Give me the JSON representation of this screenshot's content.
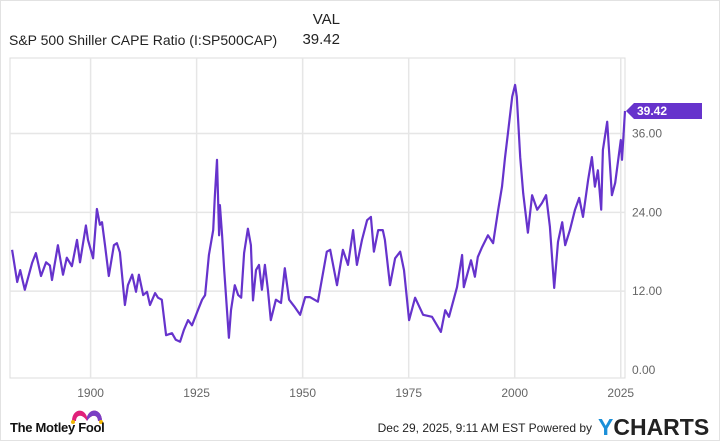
{
  "header": {
    "column_label": "VAL",
    "series_name": "S&P 500 Shiller CAPE Ratio (I:SP500CAP)",
    "series_value": "39.42"
  },
  "footer": {
    "brand": "The Motley Fool",
    "timestamp": "Dec 29, 2025, 9:11 AM EST",
    "powered_by": "Powered by",
    "provider_y": "Y",
    "provider_rest": "CHARTS"
  },
  "chart_data": {
    "type": "line",
    "title": "",
    "xlabel": "",
    "ylabel": "",
    "xlim": [
      1881,
      2026
    ],
    "ylim": [
      0,
      44
    ],
    "grid": true,
    "y_axis_side": "right",
    "x_ticks": [
      1900,
      1925,
      1950,
      1975,
      2000,
      2025
    ],
    "x_tick_labels": [
      "1900",
      "1925",
      "1950",
      "1975",
      "2000",
      "2025"
    ],
    "y_ticks": [
      0,
      12,
      24,
      36
    ],
    "y_tick_labels": [
      "0.00",
      "12.00",
      "24.00",
      "36.00"
    ],
    "last_value_label": "39.42",
    "colors": {
      "series": "#6633cc",
      "flag": "#6633cc",
      "grid": "#e6e6e6"
    },
    "series": [
      {
        "x": [
          1881.5,
          1882.7,
          1883.4,
          1884.5,
          1886.2,
          1887.1,
          1888.3,
          1889.5,
          1890.4,
          1890.9,
          1892.3,
          1893.5,
          1894.4,
          1895.6,
          1896.8,
          1897.5,
          1898.9,
          1899.4,
          1900.6,
          1901.5,
          1902.2,
          1902.7,
          1903.4,
          1904.3,
          1905.5,
          1906.2,
          1906.9,
          1908.1,
          1908.8,
          1909.8,
          1910.7,
          1911.4,
          1912.4,
          1913.3,
          1914.0,
          1915.2,
          1915.9,
          1916.8,
          1917.8,
          1919.2,
          1920.1,
          1921.1,
          1922.0,
          1923.0,
          1923.9,
          1925.3,
          1926.3,
          1927.0,
          1927.9,
          1928.9,
          1929.3,
          1929.8,
          1930.3,
          1930.5,
          1931.0,
          1931.5,
          1932.6,
          1933.1,
          1934.0,
          1934.8,
          1935.5,
          1936.2,
          1937.1,
          1937.8,
          1938.3,
          1939.0,
          1939.7,
          1940.4,
          1941.1,
          1941.8,
          1942.5,
          1943.7,
          1944.9,
          1945.8,
          1946.8,
          1948.0,
          1949.4,
          1950.6,
          1951.7,
          1953.6,
          1955.7,
          1956.5,
          1958.1,
          1959.5,
          1960.7,
          1961.9,
          1962.8,
          1964.0,
          1965.2,
          1966.1,
          1966.8,
          1967.8,
          1968.9,
          1969.4,
          1970.6,
          1971.8,
          1973.0,
          1973.9,
          1975.1,
          1976.5,
          1978.4,
          1980.5,
          1982.6,
          1983.6,
          1984.5,
          1986.4,
          1987.6,
          1988.0,
          1989.7,
          1990.6,
          1991.3,
          1992.3,
          1993.7,
          1994.9,
          1996.1,
          1997.0,
          1997.7,
          1998.4,
          1999.4,
          2000.1,
          2000.5,
          2001.3,
          2002.0,
          2003.1,
          2004.1,
          2005.3,
          2006.4,
          2007.4,
          2008.3,
          2009.3,
          2010.2,
          2011.2,
          2011.9,
          2013.0,
          2014.2,
          2015.2,
          2016.1,
          2017.3,
          2018.2,
          2018.9,
          2019.6,
          2020.4,
          2020.8,
          2021.8,
          2022.9,
          2023.7,
          2025.0,
          2025.3,
          2026.0
        ],
        "values": [
          18.3,
          13.4,
          15.2,
          12.2,
          16.3,
          17.8,
          14.3,
          16.4,
          15.9,
          13.7,
          19.0,
          14.5,
          17.1,
          15.8,
          19.8,
          16.4,
          22.0,
          19.8,
          17.0,
          24.5,
          22.1,
          22.5,
          19.0,
          14.3,
          19.0,
          19.3,
          17.9,
          9.9,
          12.9,
          14.5,
          11.9,
          14.5,
          11.4,
          11.9,
          9.9,
          11.7,
          11.0,
          10.7,
          5.3,
          5.6,
          4.6,
          4.3,
          6.1,
          7.6,
          6.8,
          9.1,
          10.7,
          11.4,
          17.5,
          21.3,
          26.6,
          32.0,
          20.5,
          25.1,
          20.5,
          15.2,
          4.9,
          9.1,
          12.9,
          11.4,
          11.0,
          17.8,
          21.5,
          19.0,
          10.6,
          15.2,
          16.0,
          12.2,
          16.0,
          12.2,
          7.6,
          10.7,
          10.2,
          15.5,
          10.7,
          9.7,
          8.4,
          11.1,
          11.1,
          10.4,
          18.0,
          18.3,
          12.9,
          18.3,
          16.0,
          21.3,
          16.0,
          19.8,
          22.8,
          23.3,
          18.0,
          21.3,
          21.3,
          19.8,
          12.9,
          17.0,
          18.0,
          15.2,
          7.6,
          11.0,
          8.4,
          8.1,
          5.8,
          9.1,
          8.1,
          12.6,
          17.5,
          12.6,
          16.7,
          14.2,
          17.2,
          18.7,
          20.5,
          19.3,
          24.4,
          27.9,
          32.3,
          36.0,
          41.6,
          43.4,
          41.6,
          32.4,
          26.9,
          20.9,
          26.6,
          24.4,
          25.4,
          26.6,
          21.8,
          12.5,
          19.5,
          22.5,
          19.0,
          21.3,
          24.4,
          26.2,
          23.3,
          28.9,
          32.4,
          27.9,
          30.4,
          24.4,
          33.5,
          37.8,
          26.6,
          28.5,
          35.0,
          32.0,
          39.42
        ]
      }
    ]
  }
}
